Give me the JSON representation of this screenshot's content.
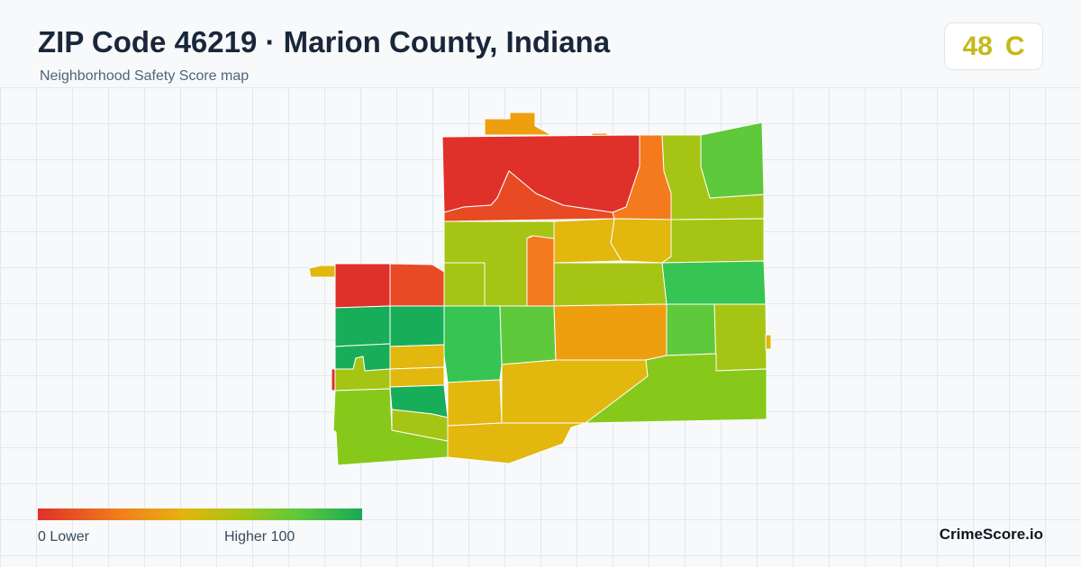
{
  "header": {
    "title": "ZIP Code 46219 · Marion County, Indiana",
    "subtitle": "Neighborhood Safety Score map"
  },
  "score": {
    "value": "48",
    "grade": "C",
    "color": "#c4b91a"
  },
  "legend": {
    "min_label": "0  Lower",
    "max_label": "Higher  100",
    "low_color": "#e0302a",
    "high_color": "#18a955"
  },
  "brand": "CrimeScore.io",
  "colors": {
    "red": "#e0302a",
    "red_orange": "#e84a24",
    "orange": "#f57a1e",
    "amber": "#ee9f10",
    "gold": "#e2b70e",
    "yellow_green": "#a6c414",
    "lime": "#86c91a",
    "green": "#5ec93a",
    "med_green": "#36c452",
    "dark_green": "#18ad58"
  }
}
